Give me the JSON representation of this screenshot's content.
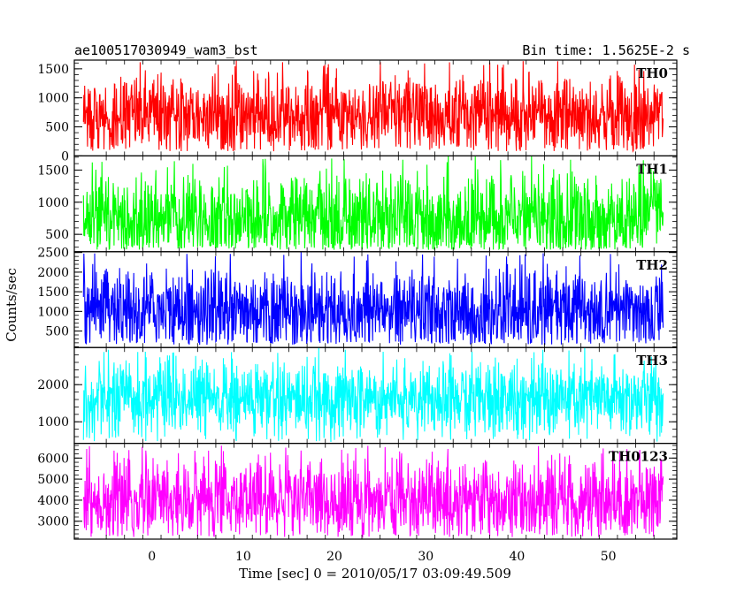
{
  "chart_data": {
    "type": "line",
    "title": "ae100517030949_wam3_bst",
    "subtitle": "Bin time: 1.5625E-2 s",
    "xlabel": "Time [sec] 0 = 2010/05/17 03:09:49.509",
    "ylabel": "Counts/sec",
    "xlim": [
      -8.5,
      57.5
    ],
    "x_data_range": [
      -7.5,
      56
    ],
    "x_ticks": [
      0,
      10,
      20,
      30,
      40,
      50
    ],
    "x_tick_labels": [
      "0",
      "10",
      "20",
      "30",
      "40",
      "50"
    ],
    "panels": [
      {
        "name": "TH0",
        "color": "#ff0000",
        "ylim": [
          0,
          1650
        ],
        "y_ticks": [
          0,
          500,
          1000,
          1500
        ],
        "y_tick_labels": [
          "0",
          "500",
          "1000",
          "1500"
        ],
        "mean": 700,
        "low": 80,
        "high": 1650
      },
      {
        "name": "TH1",
        "color": "#00ff00",
        "ylim": [
          230,
          1720
        ],
        "y_ticks": [
          500,
          1000,
          1500
        ],
        "y_tick_labels": [
          "500",
          "1000",
          "1500"
        ],
        "mean": 720,
        "low": 260,
        "high": 1720
      },
      {
        "name": "TH2",
        "color": "#0000ff",
        "ylim": [
          80,
          2520
        ],
        "y_ticks": [
          500,
          1000,
          1500,
          2000,
          2500
        ],
        "y_tick_labels": [
          "500",
          "1000",
          "1500",
          "2000",
          "2500"
        ],
        "mean": 1000,
        "low": 150,
        "high": 2520
      },
      {
        "name": "TH3",
        "color": "#00ffff",
        "ylim": [
          420,
          3000
        ],
        "y_ticks": [
          1000,
          2000
        ],
        "y_tick_labels": [
          "1000",
          "2000"
        ],
        "mean": 1600,
        "low": 450,
        "high": 3000
      },
      {
        "name": "TH0123",
        "color": "#ff00ff",
        "ylim": [
          2150,
          6700
        ],
        "y_ticks": [
          3000,
          4000,
          5000,
          6000
        ],
        "y_tick_labels": [
          "3000",
          "4000",
          "5000",
          "6000"
        ],
        "mean": 4000,
        "low": 2250,
        "high": 6600
      }
    ]
  }
}
